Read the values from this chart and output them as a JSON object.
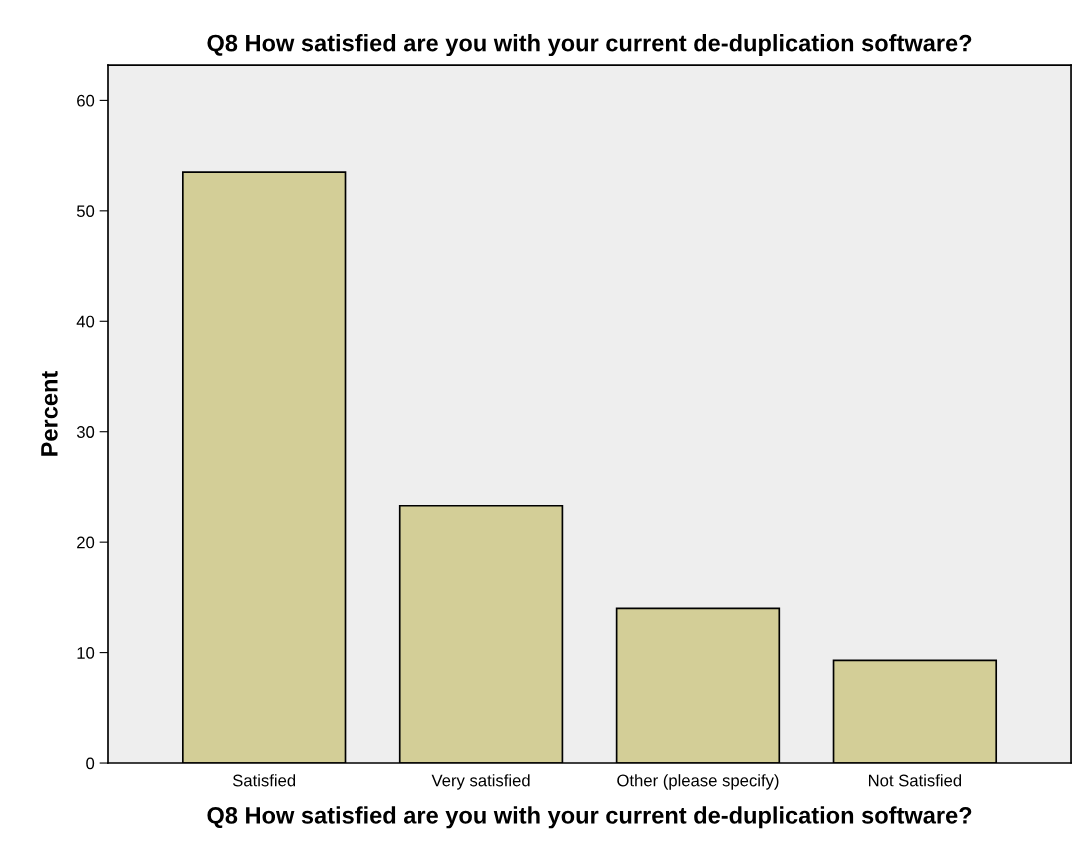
{
  "chart_data": {
    "type": "bar",
    "title": "Q8 How satisfied are you with your current de-duplication software?",
    "xlabel": "Q8 How satisfied are you with your current de-duplication software?",
    "ylabel": "Percent",
    "categories": [
      "Satisfied",
      "Very satisfied",
      "Other (please specify)",
      "Not Satisfied"
    ],
    "values": [
      53.5,
      23.3,
      14.0,
      9.3
    ],
    "color": "#d3ce97",
    "ylim": [
      0,
      63.2
    ],
    "yticks": [
      0,
      10,
      20,
      30,
      40,
      50,
      60
    ],
    "grid": false
  }
}
